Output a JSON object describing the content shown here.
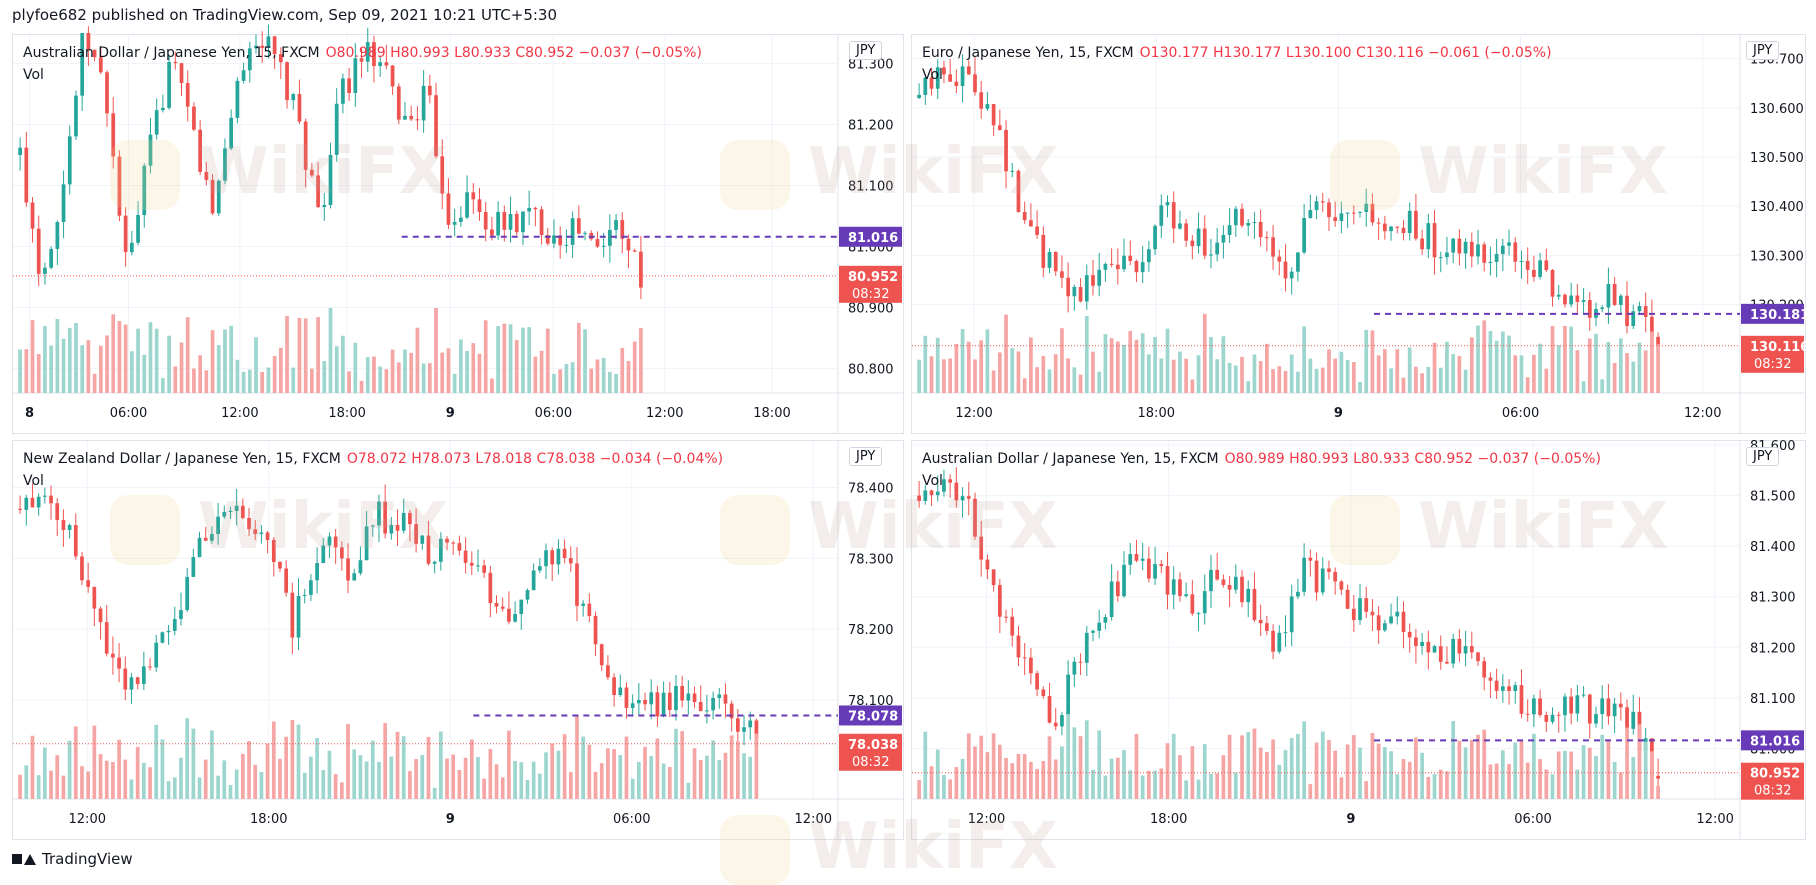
{
  "header": {
    "published": "plyfoe682 published on TradingView.com, Sep 09, 2021 10:21 UTC+5:30"
  },
  "footer": {
    "brand": "TradingView"
  },
  "watermark": {
    "text": "WikiFX"
  },
  "colors": {
    "up": "#26a69a",
    "down": "#ef5350",
    "upVol": "#9cd6cf",
    "downVol": "#f5a6a4",
    "lastPrice": "#673ab7",
    "priceTag": "#ef5350"
  },
  "chart_data": [
    {
      "type": "candlestick",
      "symbol": "Australian Dollar / Japanese Yen, 15, FXCM",
      "ohlc": {
        "o": "O80.989",
        "h": "H80.993",
        "l": "L80.933",
        "c": "C80.952",
        "chg": "−0.037 (−0.05%)"
      },
      "vol_label": "Vol",
      "currency": "JPY",
      "ylim": [
        80.76,
        81.34
      ],
      "y_ticks": [
        "81.300",
        "81.200",
        "81.100",
        "81.000",
        "80.900",
        "80.800"
      ],
      "x_ticks": [
        "8",
        "06:00",
        "12:00",
        "18:00",
        "9",
        "06:00",
        "12:00",
        "18:00"
      ],
      "x_tick_pos": [
        0.02,
        0.14,
        0.275,
        0.405,
        0.53,
        0.655,
        0.79,
        0.92
      ],
      "last_close": {
        "value": "81.016",
        "level": 81.016
      },
      "current": {
        "value": "80.952",
        "level": 80.952,
        "countdown": "08:32"
      },
      "span": 0.76,
      "path": [
        81.15,
        80.95,
        81.1,
        81.35,
        81.25,
        80.95,
        81.15,
        81.3,
        81.2,
        81.05,
        81.25,
        81.35,
        81.3,
        81.2,
        81.05,
        81.25,
        81.32,
        81.28,
        81.2,
        81.25,
        81.05,
        81.08,
        81.03,
        81.04,
        81.05,
        81.02,
        81.03,
        80.99,
        81.05,
        80.95
      ]
    },
    {
      "type": "candlestick",
      "symbol": "Euro / Japanese Yen, 15, FXCM",
      "ohlc": {
        "o": "O130.177",
        "h": "H130.177",
        "l": "L130.100",
        "c": "C130.116",
        "chg": "−0.061 (−0.05%)"
      },
      "vol_label": "Vol",
      "currency": "JPY",
      "ylim": [
        130.02,
        130.74
      ],
      "y_ticks": [
        "130.700",
        "130.600",
        "130.500",
        "130.400",
        "130.300",
        "130.200"
      ],
      "x_ticks": [
        "12:00",
        "18:00",
        "9",
        "06:00",
        "12:00"
      ],
      "x_tick_pos": [
        0.075,
        0.295,
        0.515,
        0.735,
        0.955
      ],
      "last_close": {
        "value": "130.181",
        "level": 130.181
      },
      "current": {
        "value": "130.116",
        "level": 130.116,
        "countdown": "08:32"
      },
      "span": 0.9,
      "path": [
        130.62,
        130.68,
        130.66,
        130.6,
        130.4,
        130.3,
        130.22,
        130.25,
        130.3,
        130.28,
        130.4,
        130.35,
        130.3,
        130.38,
        130.32,
        130.28,
        130.4,
        130.35,
        130.38,
        130.34,
        130.36,
        130.32,
        130.3,
        130.31,
        130.3,
        130.28,
        130.2,
        130.19,
        130.21,
        130.18,
        130.12
      ]
    },
    {
      "type": "candlestick",
      "symbol": "New Zealand Dollar / Japanese Yen, 15, FXCM",
      "ohlc": {
        "o": "O78.072",
        "h": "H78.073",
        "l": "L78.018",
        "c": "C78.038",
        "chg": "−0.034 (−0.04%)"
      },
      "vol_label": "Vol",
      "currency": "JPY",
      "ylim": [
        77.96,
        78.46
      ],
      "y_ticks": [
        "78.400",
        "78.300",
        "78.200",
        "78.100"
      ],
      "x_ticks": [
        "12:00",
        "18:00",
        "9",
        "06:00",
        "12:00"
      ],
      "x_tick_pos": [
        0.09,
        0.31,
        0.53,
        0.75,
        0.97
      ],
      "last_close": {
        "value": "78.078",
        "level": 78.078
      },
      "current": {
        "value": "78.038",
        "level": 78.038,
        "countdown": "08:32"
      },
      "span": 0.9,
      "path": [
        78.37,
        78.4,
        78.32,
        78.2,
        78.12,
        78.18,
        78.25,
        78.35,
        78.36,
        78.34,
        78.2,
        78.33,
        78.28,
        78.36,
        78.35,
        78.3,
        78.33,
        78.26,
        78.22,
        78.3,
        78.29,
        78.2,
        78.1,
        78.09,
        78.11,
        78.1,
        78.09,
        78.05
      ]
    },
    {
      "type": "candlestick",
      "symbol": "Australian Dollar / Japanese Yen, 15, FXCM",
      "ohlc": {
        "o": "O80.989",
        "h": "H80.993",
        "l": "L80.933",
        "c": "C80.952",
        "chg": "−0.037 (−0.05%)"
      },
      "vol_label": "Vol",
      "currency": "JPY",
      "ylim": [
        80.9,
        81.6
      ],
      "y_ticks": [
        "81.600",
        "81.500",
        "81.400",
        "81.300",
        "81.200",
        "81.100",
        "81.000"
      ],
      "x_ticks": [
        "12:00",
        "18:00",
        "9",
        "06:00",
        "12:00"
      ],
      "x_tick_pos": [
        0.09,
        0.31,
        0.53,
        0.75,
        0.97
      ],
      "last_close": {
        "value": "81.016",
        "level": 81.016
      },
      "current": {
        "value": "80.952",
        "level": 80.952,
        "countdown": "08:32"
      },
      "span": 0.9,
      "path": [
        81.5,
        81.55,
        81.45,
        81.25,
        81.15,
        81.05,
        81.2,
        81.3,
        81.38,
        81.33,
        81.28,
        81.36,
        81.3,
        81.2,
        81.35,
        81.32,
        81.28,
        81.26,
        81.22,
        81.18,
        81.2,
        81.15,
        81.08,
        81.07,
        81.09,
        81.07,
        81.06,
        80.95
      ]
    }
  ]
}
